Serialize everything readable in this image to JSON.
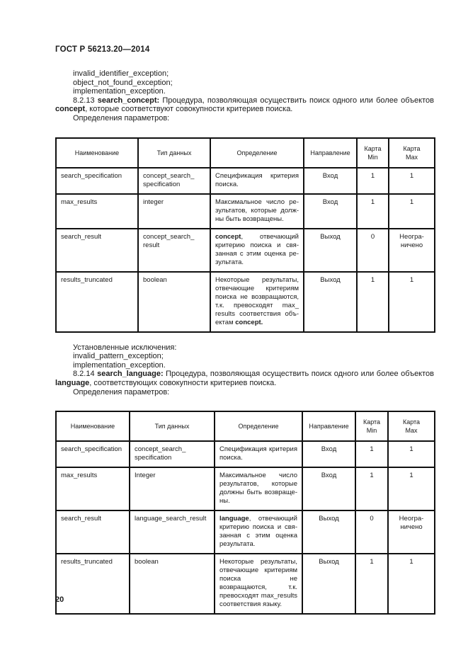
{
  "doc": {
    "header": "ГОСТ Р 56213.20—2014",
    "page_number": "20"
  },
  "intro": {
    "exceptions": [
      "invalid_identifier_exception;",
      "object_not_found_exception;",
      "implementation_exception."
    ],
    "section_8_2_13": [
      {
        "t": "8.2.13 "
      },
      {
        "t": "search_concept:",
        "b": true
      },
      {
        "t": " Процедура, позволяющая осуществить поиск одного или более объек­тов "
      },
      {
        "t": "concept",
        "b": true
      },
      {
        "t": ", которые соответствуют совокупности критериев поиска."
      }
    ],
    "params_label": "Определения параметров:"
  },
  "table1": {
    "headers": [
      "Наименование",
      "Тип данных",
      "Определение",
      "Направление",
      "Карта\nMin",
      "Карта\nMax"
    ],
    "rows": [
      {
        "name": "search_specification",
        "type": "concept_search_​specification",
        "definition": [
          {
            "t": "Спецификация критерия поиска."
          }
        ],
        "direction": "Вход",
        "min": "1",
        "max": "1"
      },
      {
        "name": "max_results",
        "type": "integer",
        "definition": [
          {
            "t": "Максимальное число ре­зультатов, которые долж­ны быть возвращены."
          }
        ],
        "direction": "Вход",
        "min": "1",
        "max": "1"
      },
      {
        "name": "search_result",
        "type": "concept_search_​result",
        "definition": [
          {
            "t": "concept",
            "b": true
          },
          {
            "t": ", отвечающий критерию поиска и свя­занная с этим оценка ре­зультата."
          }
        ],
        "direction": "Выход",
        "min": "0",
        "max": "Неогра­ничено"
      },
      {
        "name": "results_truncated",
        "type": "boolean",
        "definition": [
          {
            "t": "Некоторые результаты, отвечающие критериям поиска не возвращаются, т.к. превосходят max_​results соответствия объ­ектам "
          },
          {
            "t": "concept.",
            "b": true
          }
        ],
        "direction": "Выход",
        "min": "1",
        "max": "1"
      }
    ]
  },
  "middle": {
    "established_label": "Установленные исключения:",
    "exceptions": [
      "invalid_pattern_exception;",
      "implementation_exception."
    ],
    "section_8_2_14": [
      {
        "t": "8.2.14 "
      },
      {
        "t": "search_language:",
        "b": true
      },
      {
        "t": " Процедура, позволяющая осуществить поиск одного или более объек­тов "
      },
      {
        "t": "language",
        "b": true
      },
      {
        "t": ", соответствующих совокупности критериев поиска."
      }
    ],
    "params_label": "Определения параметров:"
  },
  "table2": {
    "headers": [
      "Наименование",
      "Тип данных",
      "Определение",
      "Направление",
      "Карта\nMin",
      "Карта\nMax"
    ],
    "rows": [
      {
        "name": "search_specification",
        "type": "concept_search_​specification",
        "definition": [
          {
            "t": "Спецификация критерия поиска."
          }
        ],
        "direction": "Вход",
        "min": "1",
        "max": "1"
      },
      {
        "name": "max_results",
        "type": "Integer",
        "definition": [
          {
            "t": "Максимальное число результатов, которые должны быть возвраще­ны."
          }
        ],
        "direction": "Вход",
        "min": "1",
        "max": "1"
      },
      {
        "name": "search_result",
        "type": "language_search_result",
        "definition": [
          {
            "t": "language",
            "b": true
          },
          {
            "t": ", отвечающий критерию поиска и свя­занная с этим оценка результата."
          }
        ],
        "direction": "Выход",
        "min": "0",
        "max": "Неогра­ничено"
      },
      {
        "name": "results_truncated",
        "type": "boolean",
        "definition": [
          {
            "t": "Некоторые результаты, отвечающие критериям поиска не возвращаются, т.к. превосходят max_results соответствия языку."
          }
        ],
        "direction": "Выход",
        "min": "1",
        "max": "1"
      }
    ]
  }
}
